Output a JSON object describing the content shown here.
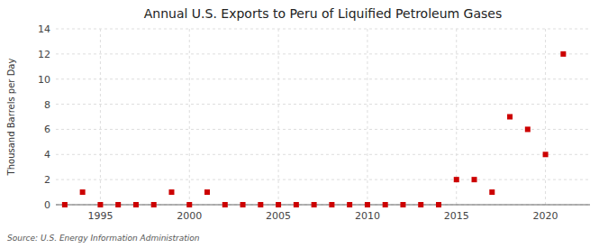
{
  "chart_data": {
    "type": "scatter",
    "title": "Annual U.S. Exports to Peru of Liquified Petroleum Gases",
    "y_label": "Thousand Barrels per Day",
    "annotations": [
      "Source: U.S. Energy Information Administration"
    ],
    "x": [
      1993,
      1994,
      1995,
      1996,
      1997,
      1998,
      1999,
      2000,
      2001,
      2002,
      2003,
      2004,
      2005,
      2006,
      2007,
      2008,
      2009,
      2010,
      2011,
      2012,
      2013,
      2014,
      2015,
      2016,
      2017,
      2018,
      2019,
      2020,
      2021
    ],
    "values": [
      0,
      1,
      0,
      0,
      0,
      0,
      1,
      0,
      1,
      0,
      0,
      0,
      0,
      0,
      0,
      0,
      0,
      0,
      0,
      0,
      0,
      0,
      2,
      2,
      1,
      7,
      6,
      4,
      12
    ],
    "color": "#cc0000",
    "marker": "square",
    "xlim": [
      1992.5,
      2022.5
    ],
    "ylim": [
      0,
      14
    ],
    "xticks": [
      1995,
      2000,
      2005,
      2010,
      2015,
      2020
    ],
    "yticks": [
      0,
      2,
      4,
      6,
      8,
      10,
      12,
      14
    ],
    "grid": true
  }
}
